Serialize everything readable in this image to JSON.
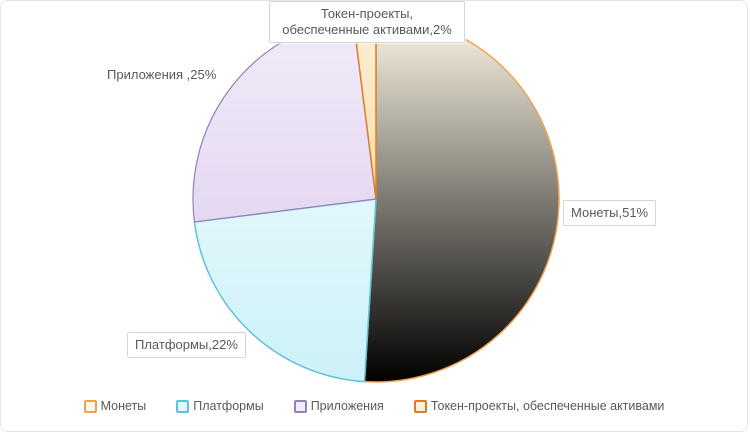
{
  "frame": {
    "background": "#ffffff",
    "border_color": "#e3e3e3"
  },
  "text_color": "#595959",
  "chart_data": {
    "type": "pie",
    "title": "",
    "unit": "%",
    "start_angle_deg": 0,
    "direction": "clockwise",
    "legend_position": "bottom",
    "slices": [
      {
        "label": "Монеты",
        "value": 51,
        "fill_from": "#fdf6e6",
        "fill_to": "#fad folgt898",
        "stroke": "#f0a254",
        "stroke_width": 1.5
      },
      {
        "label": "Платформы",
        "value": 22,
        "fill_from": "#e0f8fb",
        "fill_to": "#ccf1f8",
        "stroke": "#5fc2d8",
        "stroke_width": 1.5
      },
      {
        "label": "Приложения",
        "value": 25,
        "fill_from": "#f2ebf9",
        "fill_to": "#e5d8f2",
        "stroke": "#9080ba",
        "stroke_width": 1.2
      },
      {
        "label": "Токен-проекты, обеспеченные активами",
        "value": 2,
        "fill_from": "#fdf0d8",
        "fill_to": "#f8dca6",
        "stroke": "#da7c2b",
        "stroke_width": 1.5
      }
    ]
  },
  "callouts": {
    "token_line1": "Токен-проекты,",
    "token_line2": "обеспеченные активами,2%",
    "apps": "Приложения ,25%",
    "coins": "Монеты,51%",
    "platforms": "Платформы,22%"
  }
}
